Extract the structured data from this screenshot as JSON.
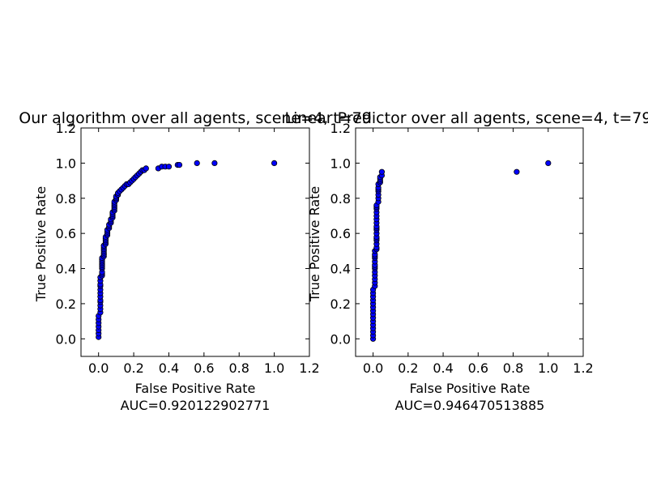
{
  "chart_data": [
    {
      "type": "scatter",
      "title": "Our algorithm over all agents, scene=4, t=79",
      "xlabel": "False Positive Rate",
      "ylabel": "True Positive Rate",
      "footer": "AUC=0.920122902771",
      "xlim": [
        -0.1,
        1.2
      ],
      "ylim": [
        -0.1,
        1.2
      ],
      "xticks": [
        "0.0",
        "0.2",
        "0.4",
        "0.6",
        "0.8",
        "1.0",
        "1.2"
      ],
      "yticks": [
        "0.0",
        "0.2",
        "0.4",
        "0.6",
        "0.8",
        "1.0",
        "1.2"
      ],
      "grid": false,
      "marker_color": "#0000ff",
      "series": [
        {
          "x": [
            0.0,
            0.0,
            0.0,
            0.0,
            0.0,
            0.0,
            0.0,
            0.01,
            0.01,
            0.01,
            0.01,
            0.01,
            0.01,
            0.01,
            0.01,
            0.01,
            0.01,
            0.01,
            0.01,
            0.02,
            0.02,
            0.02,
            0.02,
            0.02,
            0.02,
            0.02,
            0.02,
            0.02,
            0.02,
            0.03,
            0.03,
            0.03,
            0.03,
            0.03,
            0.03,
            0.03,
            0.03,
            0.04,
            0.04,
            0.04,
            0.04,
            0.04,
            0.05,
            0.05,
            0.05,
            0.05,
            0.06,
            0.06,
            0.06,
            0.07,
            0.07,
            0.07,
            0.08,
            0.08,
            0.08,
            0.08,
            0.09,
            0.09,
            0.09,
            0.09,
            0.09,
            0.09,
            0.1,
            0.1,
            0.1,
            0.1,
            0.1,
            0.11,
            0.11,
            0.11,
            0.12,
            0.13,
            0.14,
            0.15,
            0.16,
            0.17,
            0.18,
            0.19,
            0.2,
            0.21,
            0.22,
            0.23,
            0.24,
            0.25,
            0.26,
            0.27,
            0.34,
            0.36,
            0.38,
            0.4,
            0.45,
            0.46,
            0.56,
            0.66,
            1.0
          ],
          "y": [
            0.01,
            0.03,
            0.05,
            0.07,
            0.09,
            0.11,
            0.13,
            0.15,
            0.17,
            0.19,
            0.21,
            0.22,
            0.24,
            0.26,
            0.28,
            0.3,
            0.31,
            0.33,
            0.35,
            0.36,
            0.37,
            0.38,
            0.4,
            0.41,
            0.42,
            0.43,
            0.44,
            0.45,
            0.46,
            0.47,
            0.48,
            0.49,
            0.5,
            0.51,
            0.52,
            0.53,
            0.53,
            0.54,
            0.55,
            0.56,
            0.57,
            0.58,
            0.59,
            0.6,
            0.61,
            0.62,
            0.63,
            0.64,
            0.65,
            0.66,
            0.67,
            0.68,
            0.69,
            0.7,
            0.71,
            0.72,
            0.73,
            0.74,
            0.75,
            0.76,
            0.77,
            0.78,
            0.79,
            0.8,
            0.8,
            0.81,
            0.81,
            0.82,
            0.82,
            0.83,
            0.84,
            0.85,
            0.86,
            0.87,
            0.88,
            0.88,
            0.89,
            0.9,
            0.91,
            0.92,
            0.93,
            0.94,
            0.95,
            0.96,
            0.96,
            0.97,
            0.97,
            0.98,
            0.98,
            0.98,
            0.99,
            0.99,
            1.0,
            1.0,
            1.0
          ]
        }
      ]
    },
    {
      "type": "scatter",
      "title": "Linear Predictor over all agents, scene=4, t=79",
      "xlabel": "False Positive Rate",
      "ylabel": "True Positive Rate",
      "footer": "AUC=0.946470513885",
      "xlim": [
        -0.1,
        1.2
      ],
      "ylim": [
        -0.1,
        1.2
      ],
      "xticks": [
        "0.0",
        "0.2",
        "0.4",
        "0.6",
        "0.8",
        "1.0",
        "1.2"
      ],
      "yticks": [
        "0.0",
        "0.2",
        "0.4",
        "0.6",
        "0.8",
        "1.0",
        "1.2"
      ],
      "grid": false,
      "marker_color": "#0000ff",
      "series": [
        {
          "x": [
            0.0,
            0.0,
            0.0,
            0.0,
            0.0,
            0.0,
            0.0,
            0.0,
            0.0,
            0.0,
            0.0,
            0.0,
            0.0,
            0.0,
            0.0,
            0.01,
            0.01,
            0.01,
            0.01,
            0.01,
            0.01,
            0.01,
            0.01,
            0.01,
            0.01,
            0.01,
            0.01,
            0.01,
            0.02,
            0.02,
            0.02,
            0.02,
            0.02,
            0.02,
            0.02,
            0.02,
            0.02,
            0.02,
            0.02,
            0.02,
            0.02,
            0.02,
            0.02,
            0.02,
            0.02,
            0.03,
            0.03,
            0.03,
            0.03,
            0.03,
            0.03,
            0.03,
            0.04,
            0.04,
            0.04,
            0.04,
            0.05,
            0.05,
            0.82,
            1.0
          ],
          "y": [
            0.0,
            0.02,
            0.04,
            0.06,
            0.08,
            0.1,
            0.12,
            0.14,
            0.16,
            0.18,
            0.2,
            0.22,
            0.24,
            0.26,
            0.28,
            0.3,
            0.32,
            0.34,
            0.36,
            0.38,
            0.4,
            0.41,
            0.42,
            0.44,
            0.46,
            0.47,
            0.48,
            0.5,
            0.51,
            0.52,
            0.54,
            0.56,
            0.57,
            0.58,
            0.6,
            0.62,
            0.63,
            0.64,
            0.66,
            0.68,
            0.7,
            0.72,
            0.74,
            0.75,
            0.76,
            0.78,
            0.8,
            0.82,
            0.84,
            0.85,
            0.86,
            0.88,
            0.89,
            0.9,
            0.91,
            0.92,
            0.93,
            0.95,
            0.95,
            1.0
          ]
        }
      ]
    }
  ]
}
